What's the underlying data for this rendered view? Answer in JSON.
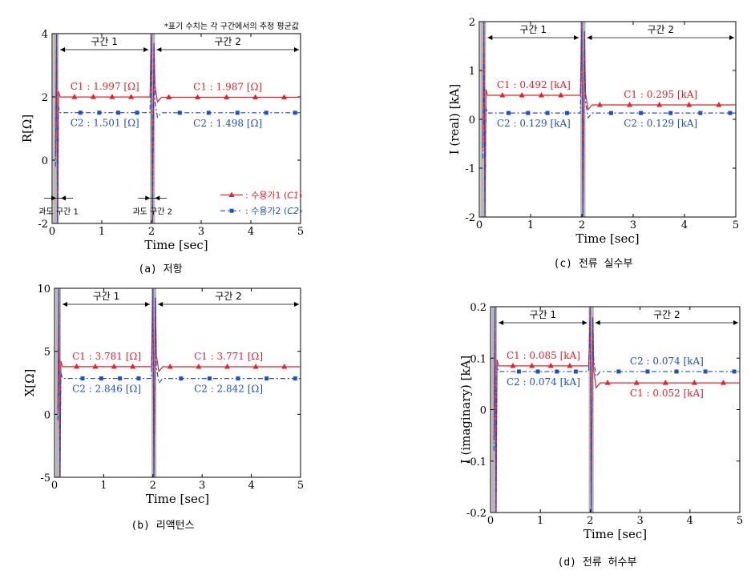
{
  "note": "*표기 수치는 각 구간에서의 추정 평균값",
  "legend": {
    "c1_label": "수용가1",
    "c1_code": "C1",
    "c2_label": "수용가2",
    "c2_code": "C2",
    "c1_color": "#e8202a",
    "c2_color": "#1f4fc8"
  },
  "transient_labels": [
    "과도 구간 1",
    "과도 구간 2"
  ],
  "chart_data": [
    {
      "id": "a",
      "type": "line",
      "caption": "(a) 저항",
      "xlabel": "Time [sec]",
      "ylabel": "R[Ω]",
      "xlim": [
        0,
        5
      ],
      "ylim": [
        -2,
        4
      ],
      "xticks": [
        "0",
        "1",
        "2",
        "3",
        "4",
        "5"
      ],
      "yticks": [
        "-2",
        "0",
        "2",
        "4"
      ],
      "section_labels": [
        "구간 1",
        "구간 2"
      ],
      "series": [
        {
          "name": "C1",
          "segment1": 1.997,
          "segment2": 1.987,
          "label1": "C1 : 1.997 [Ω]",
          "label2": "C1 : 1.987 [Ω]"
        },
        {
          "name": "C2",
          "segment1": 1.501,
          "segment2": 1.498,
          "label1": "C2 : 1.501 [Ω]",
          "label2": "C2 : 1.498 [Ω]"
        }
      ]
    },
    {
      "id": "b",
      "type": "line",
      "caption": "(b) 리액턴스",
      "xlabel": "Time [sec]",
      "ylabel": "X[Ω]",
      "xlim": [
        0,
        5
      ],
      "ylim": [
        -5,
        10
      ],
      "xticks": [
        "0",
        "1",
        "2",
        "3",
        "4",
        "5"
      ],
      "yticks": [
        "-5",
        "0",
        "5",
        "10"
      ],
      "section_labels": [
        "구간 1",
        "구간 2"
      ],
      "series": [
        {
          "name": "C1",
          "segment1": 3.781,
          "segment2": 3.771,
          "label1": "C1 : 3.781 [Ω]",
          "label2": "C1 : 3.771 [Ω]"
        },
        {
          "name": "C2",
          "segment1": 2.846,
          "segment2": 2.842,
          "label1": "C2 : 2.846 [Ω]",
          "label2": "C2 : 2.842 [Ω]"
        }
      ]
    },
    {
      "id": "c",
      "type": "line",
      "caption": "(c) 전류 실수부",
      "xlabel": "Time [sec]",
      "ylabel": "I (real) [kA]",
      "xlim": [
        0,
        5
      ],
      "ylim": [
        -2,
        2
      ],
      "xticks": [
        "0",
        "1",
        "2",
        "3",
        "4",
        "5"
      ],
      "yticks": [
        "-2",
        "-1",
        "0",
        "1",
        "2"
      ],
      "section_labels": [
        "구간 1",
        "구간 2"
      ],
      "series": [
        {
          "name": "C1",
          "segment1": 0.492,
          "segment2": 0.295,
          "label1": "C1 : 0.492 [kA]",
          "label2": "C1 : 0.295 [kA]"
        },
        {
          "name": "C2",
          "segment1": 0.129,
          "segment2": 0.129,
          "label1": "C2 : 0.129 [kA]",
          "label2": "C2 : 0.129 [kA]"
        }
      ]
    },
    {
      "id": "d",
      "type": "line",
      "caption": "(d) 전류 허수부",
      "xlabel": "Time [sec]",
      "ylabel": "I (imaginary) [kA]",
      "xlim": [
        0,
        5
      ],
      "ylim": [
        -0.2,
        0.2
      ],
      "xticks": [
        "0",
        "1",
        "2",
        "3",
        "4",
        "5"
      ],
      "yticks": [
        "-0.2",
        "-0.1",
        "0",
        "0.1",
        "0.2"
      ],
      "section_labels": [
        "구간 1",
        "구간 2"
      ],
      "series": [
        {
          "name": "C1",
          "segment1": 0.085,
          "segment2": 0.052,
          "label1": "C1 : 0.085 [kA]",
          "label2": "C1 : 0.052 [kA]"
        },
        {
          "name": "C2",
          "segment1": 0.074,
          "segment2": 0.074,
          "label1": "C2 : 0.074 [kA]",
          "label2": "C2 : 0.074 [kA]"
        }
      ]
    }
  ]
}
